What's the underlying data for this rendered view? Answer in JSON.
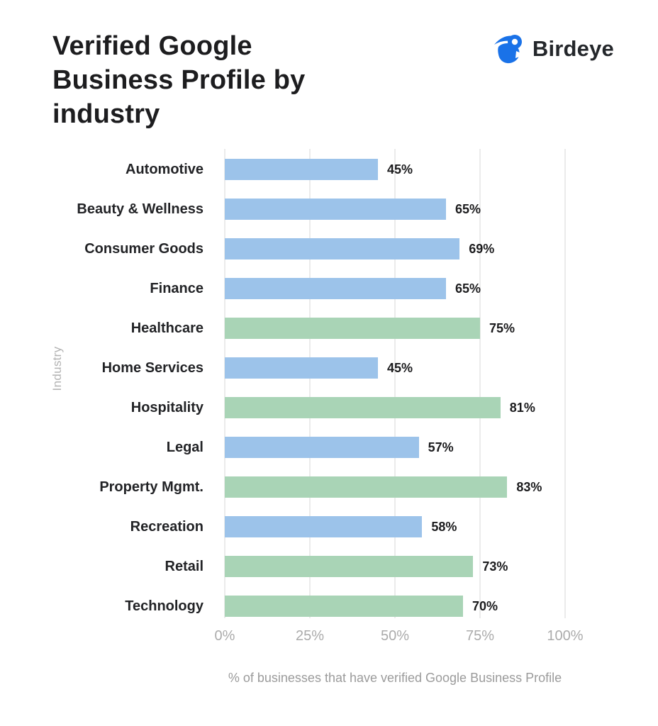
{
  "header": {
    "title": "Verified Google\nBusiness Profile by\nindustry",
    "logo": {
      "brand": "Birdeye",
      "icon": "birdeye-bird-icon",
      "icon_color": "#1a72e8",
      "text_color": "#24272b"
    }
  },
  "chart_data": {
    "type": "bar",
    "orientation": "horizontal",
    "title": "Verified Google Business Profile by industry",
    "xlabel": "% of businesses that have verified Google Business Profile",
    "ylabel": "Industry",
    "xlim": [
      0,
      100
    ],
    "x_ticks": [
      "0%",
      "25%",
      "50%",
      "75%",
      "100%"
    ],
    "x_tick_values": [
      0,
      25,
      50,
      75,
      100
    ],
    "grid": "vertical",
    "legend": "none",
    "value_suffix": "%",
    "colors": {
      "blue": "#9cc3ea",
      "green": "#a9d4b6"
    },
    "gridline_color": "#d7d7d7",
    "categories": [
      "Automotive",
      "Beauty & Wellness",
      "Consumer Goods",
      "Finance",
      "Healthcare",
      "Home Services",
      "Hospitality",
      "Legal",
      "Property Mgmt.",
      "Recreation",
      "Retail",
      "Technology"
    ],
    "items": [
      {
        "label": "Automotive",
        "value": 45,
        "color": "blue"
      },
      {
        "label": "Beauty & Wellness",
        "value": 65,
        "color": "blue"
      },
      {
        "label": "Consumer Goods",
        "value": 69,
        "color": "blue"
      },
      {
        "label": "Finance",
        "value": 65,
        "color": "blue"
      },
      {
        "label": "Healthcare",
        "value": 75,
        "color": "green"
      },
      {
        "label": "Home Services",
        "value": 45,
        "color": "blue"
      },
      {
        "label": "Hospitality",
        "value": 81,
        "color": "green"
      },
      {
        "label": "Legal",
        "value": 57,
        "color": "blue"
      },
      {
        "label": "Property Mgmt.",
        "value": 83,
        "color": "green"
      },
      {
        "label": "Recreation",
        "value": 58,
        "color": "blue"
      },
      {
        "label": "Retail",
        "value": 73,
        "color": "green"
      },
      {
        "label": "Technology",
        "value": 70,
        "color": "green"
      }
    ]
  }
}
